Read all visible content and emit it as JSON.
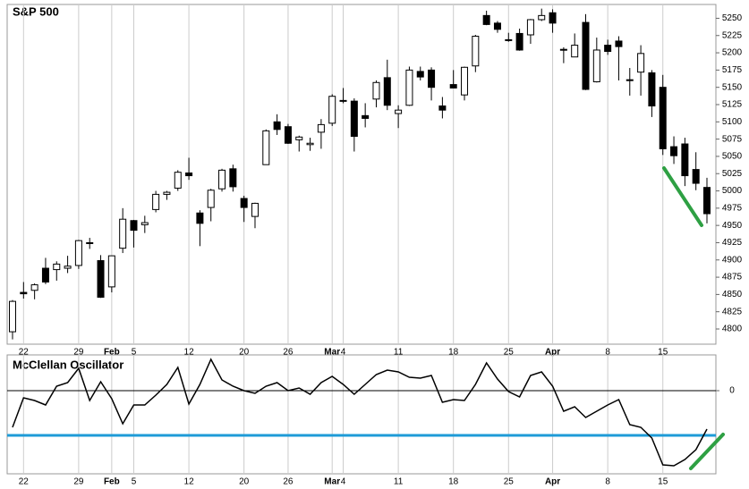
{
  "chart_data": [
    {
      "type": "candlestick",
      "title": "S&P 500",
      "categories": [
        null,
        "22",
        null,
        null,
        null,
        null,
        "29",
        null,
        null,
        "Feb",
        null,
        "5",
        null,
        null,
        null,
        null,
        "12",
        null,
        null,
        null,
        null,
        "20",
        null,
        null,
        null,
        "26",
        null,
        null,
        null,
        "Mar",
        "4",
        null,
        null,
        null,
        null,
        "11",
        null,
        null,
        null,
        null,
        "18",
        null,
        null,
        null,
        null,
        "25",
        null,
        null,
        null,
        "Apr",
        null,
        null,
        null,
        null,
        "8",
        null,
        null,
        null,
        null,
        "15",
        null,
        null,
        null,
        null
      ],
      "open": [
        4796,
        4853,
        4856,
        4888,
        4886,
        4888,
        4892,
        4925,
        4899,
        4861,
        4917,
        4957,
        4951,
        4973,
        4995,
        5004,
        5026,
        4968,
        4976,
        5003,
        5032,
        4989,
        4963,
        5038,
        5100,
        5093,
        5074,
        5067,
        5085,
        5098,
        5131,
        5130,
        5109,
        5133,
        5164,
        5112,
        5124,
        5173,
        5175,
        5123,
        5154,
        5139,
        5181,
        5254,
        5243,
        5219,
        5228,
        5226,
        5248,
        5258,
        5204,
        5194,
        5244,
        5158,
        5211,
        5217,
        5161,
        5172,
        5171,
        5150,
        5064,
        5068,
        5031,
        5005
      ],
      "high": [
        4842,
        4868,
        4866,
        4903,
        4898,
        4906,
        4929,
        4932,
        4907,
        4906,
        4975,
        4958,
        4964,
        5000,
        5000,
        5030,
        5048,
        4972,
        5003,
        5032,
        5038,
        4993,
        4983,
        5089,
        5111,
        5097,
        5080,
        5077,
        5104,
        5140,
        5149,
        5134,
        5127,
        5160,
        5190,
        5124,
        5180,
        5180,
        5179,
        5136,
        5175,
        5180,
        5226,
        5261,
        5246,
        5229,
        5235,
        5249,
        5264,
        5263,
        5208,
        5228,
        5256,
        5222,
        5219,
        5224,
        5178,
        5211,
        5175,
        5168,
        5079,
        5077,
        5056,
        5019
      ],
      "low": [
        4785,
        4844,
        4843,
        4865,
        4870,
        4881,
        4887,
        4916,
        4845,
        4853,
        4910,
        4918,
        4939,
        4969,
        4987,
        5000,
        5016,
        4920,
        4956,
        4999,
        4999,
        4955,
        4946,
        5038,
        5081,
        5068,
        5057,
        5058,
        5061,
        5094,
        5127,
        5057,
        5092,
        5121,
        5117,
        5091,
        5123,
        5160,
        5131,
        5105,
        5149,
        5131,
        5172,
        5240,
        5229,
        5216,
        5203,
        5213,
        5246,
        5229,
        5185,
        5194,
        5146,
        5157,
        5197,
        5160,
        5138,
        5138,
        5107,
        5052,
        5039,
        5007,
        5001,
        4953
      ],
      "close": [
        4840,
        4851,
        4864,
        4868,
        4894,
        4891,
        4928,
        4925,
        4846,
        4906,
        4959,
        4943,
        4954,
        4995,
        4998,
        5027,
        5022,
        4953,
        5001,
        5030,
        5006,
        4976,
        4982,
        5087,
        5089,
        5069,
        5078,
        5069,
        5096,
        5137,
        5131,
        5079,
        5105,
        5157,
        5124,
        5117,
        5175,
        5165,
        5150,
        5117,
        5149,
        5179,
        5224,
        5241,
        5234,
        5218,
        5204,
        5248,
        5254,
        5243,
        5205,
        5211,
        5147,
        5204,
        5202,
        5209,
        5161,
        5199,
        5123,
        5061,
        5051,
        5022,
        5011,
        4967
      ],
      "up_color": "#ffffff",
      "down_color": "#000000",
      "edge_color": "#000000",
      "ylim": [
        4778,
        5270
      ],
      "yticks": [
        4800,
        4825,
        4850,
        4875,
        4900,
        4925,
        4950,
        4975,
        5000,
        5025,
        5050,
        5075,
        5100,
        5125,
        5150,
        5175,
        5200,
        5225,
        5250
      ],
      "grid": true
    },
    {
      "type": "line",
      "title": "McClellan Oscillator",
      "values": [
        -41,
        -8,
        -11,
        -16,
        5,
        9,
        25,
        -11,
        10,
        -9,
        -37,
        -16,
        -16,
        -5,
        7,
        26,
        -15,
        7,
        35,
        12,
        5,
        0,
        -3,
        5,
        9,
        0,
        3,
        -4,
        9,
        16,
        7,
        -4,
        7,
        18,
        23,
        21,
        15,
        14,
        17,
        -13,
        -10,
        -11,
        7,
        31,
        13,
        -1,
        -7,
        17,
        21,
        5,
        -23,
        -18,
        -30,
        -23,
        -16,
        -10,
        -38,
        -41,
        -53,
        -83,
        -84,
        -77,
        -66,
        -43
      ],
      "color": "#000000",
      "ylim": [
        -93,
        40
      ],
      "yticks": [
        0
      ],
      "hline": -50,
      "hline_color": "#1e9bd7"
    }
  ]
}
